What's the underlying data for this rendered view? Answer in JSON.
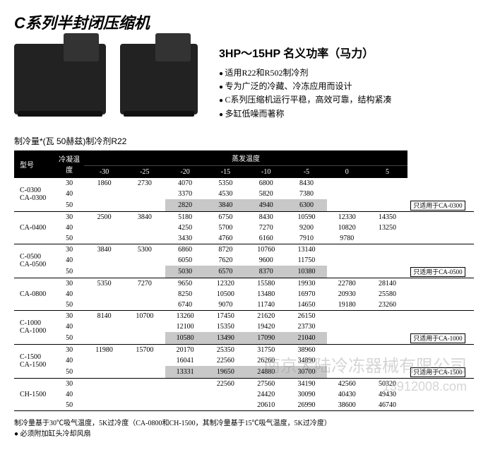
{
  "title": "C系列半封闭压缩机",
  "subtitle": "3HP～15HP 名义功率（马力）",
  "bullets": [
    "适用R22和R502制冷剂",
    "专为广泛的冷藏、冷冻应用而设计",
    "C系列压缩机运行平稳，高效可靠，结构紧凑",
    "多缸低噪而著称"
  ],
  "table_title": "制冷量*(瓦 50赫兹)制冷剂R22",
  "header_labels": {
    "model": "型号",
    "cond": "冷凝温度",
    "evap": "蒸发温度"
  },
  "evap_temps": [
    "-30",
    "-25",
    "-20",
    "-15",
    "-10",
    "-5",
    "0",
    "5"
  ],
  "groups": [
    {
      "model": "C-0300\nCA-0300",
      "rows": [
        {
          "t": "30",
          "v": [
            "1860",
            "2730",
            "4070",
            "5350",
            "6800",
            "8430",
            "",
            ""
          ]
        },
        {
          "t": "40",
          "v": [
            "",
            "",
            "3370",
            "4530",
            "5820",
            "7380",
            "",
            ""
          ]
        },
        {
          "t": "50",
          "v": [
            "",
            "",
            "2820",
            "3840",
            "4940",
            "6300",
            "",
            ""
          ],
          "hl": [
            2,
            3,
            4,
            5
          ],
          "note": "只适用于CA-0300"
        }
      ]
    },
    {
      "model": "CA-0400",
      "rows": [
        {
          "t": "30",
          "v": [
            "2500",
            "3840",
            "5180",
            "6750",
            "8430",
            "10590",
            "12330",
            "14350"
          ]
        },
        {
          "t": "40",
          "v": [
            "",
            "",
            "4250",
            "5700",
            "7270",
            "9200",
            "10820",
            "13250"
          ]
        },
        {
          "t": "50",
          "v": [
            "",
            "",
            "3430",
            "4760",
            "6160",
            "7910",
            "9780",
            ""
          ]
        }
      ]
    },
    {
      "model": "C-0500\nCA-0500",
      "rows": [
        {
          "t": "30",
          "v": [
            "3840",
            "5300",
            "6860",
            "8720",
            "10760",
            "13140",
            "",
            ""
          ]
        },
        {
          "t": "40",
          "v": [
            "",
            "",
            "6050",
            "7620",
            "9600",
            "11750",
            "",
            ""
          ]
        },
        {
          "t": "50",
          "v": [
            "",
            "",
            "5030",
            "6570",
            "8370",
            "10380",
            "",
            ""
          ],
          "hl": [
            2,
            3,
            4,
            5
          ],
          "note": "只适用于CA-0500"
        }
      ]
    },
    {
      "model": "CA-0800",
      "rows": [
        {
          "t": "30",
          "v": [
            "5350",
            "7270",
            "9650",
            "12320",
            "15580",
            "19930",
            "22780",
            "28140"
          ]
        },
        {
          "t": "40",
          "v": [
            "",
            "",
            "8250",
            "10500",
            "13480",
            "16970",
            "20930",
            "25580"
          ]
        },
        {
          "t": "50",
          "v": [
            "",
            "",
            "6740",
            "9070",
            "11740",
            "14650",
            "19180",
            "23260"
          ]
        }
      ]
    },
    {
      "model": "C-1000\nCA-1000",
      "rows": [
        {
          "t": "30",
          "v": [
            "8140",
            "10700",
            "13260",
            "17450",
            "21620",
            "26150",
            "",
            ""
          ]
        },
        {
          "t": "40",
          "v": [
            "",
            "",
            "12100",
            "15350",
            "19420",
            "23730",
            "",
            ""
          ]
        },
        {
          "t": "50",
          "v": [
            "",
            "",
            "10580",
            "13490",
            "17090",
            "21040",
            "",
            ""
          ],
          "hl": [
            2,
            3,
            4,
            5
          ],
          "note": "只适用于CA-1000"
        }
      ]
    },
    {
      "model": "C-1500\nCA-1500",
      "rows": [
        {
          "t": "30",
          "v": [
            "11980",
            "15700",
            "20170",
            "25350",
            "31750",
            "38960",
            "",
            ""
          ]
        },
        {
          "t": "40",
          "v": [
            "",
            "",
            "16041",
            "22560",
            "26260",
            "34890",
            "",
            ""
          ]
        },
        {
          "t": "50",
          "v": [
            "",
            "",
            "13331",
            "19650",
            "24880",
            "30700",
            "",
            ""
          ],
          "hl": [
            2,
            3,
            4,
            5
          ],
          "note": "只适用于CA-1500"
        }
      ]
    },
    {
      "model": "CH-1500",
      "rows": [
        {
          "t": "30",
          "v": [
            "",
            "",
            "",
            "22560",
            "27560",
            "34190",
            "42560",
            "50320"
          ]
        },
        {
          "t": "40",
          "v": [
            "",
            "",
            "",
            "",
            "24420",
            "30090",
            "40430",
            "49430"
          ]
        },
        {
          "t": "50",
          "v": [
            "",
            "",
            "",
            "",
            "20610",
            "26990",
            "38600",
            "46740"
          ]
        }
      ]
    }
  ],
  "footnotes": [
    "制冷量基于30℃吸气温度，5K过冷度（CA-0800和CH-1500，其制冷量基于15℃吸气温度，5K过冷度）",
    "● 必须附加缸头冷却风扇"
  ],
  "watermark1": "南京大陆冷冻器械有限公司",
  "watermark2": "13912008.com"
}
